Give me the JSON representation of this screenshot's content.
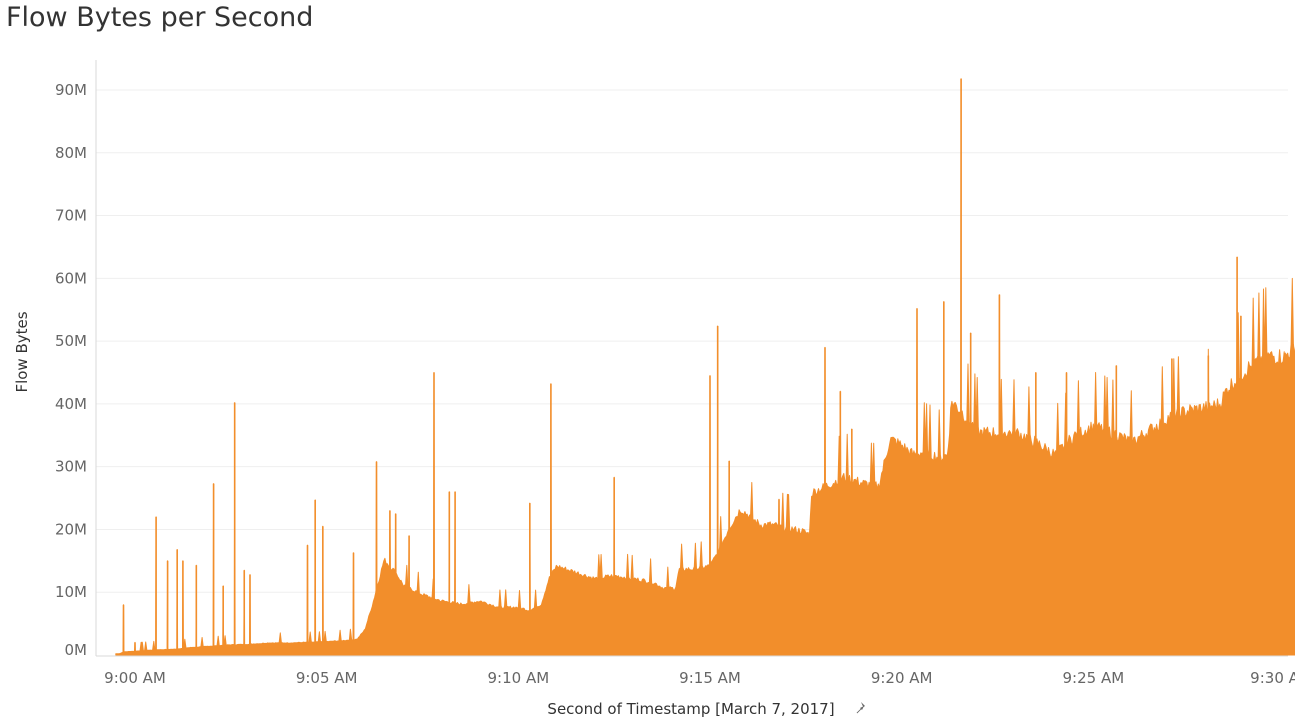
{
  "colors": {
    "area": "#F28E2B",
    "grid": "#EFEFEF",
    "axis": "#D9D9D9"
  },
  "chart_data": {
    "type": "area",
    "title": "Flow Bytes per Second",
    "xlabel": "Second of Timestamp [March 7, 2017]",
    "ylabel": "Flow Bytes",
    "ylim": [
      0,
      95
    ],
    "xlim": [
      -0.5,
      31.2
    ],
    "y_unit": "M",
    "yticks": [
      0,
      10,
      20,
      30,
      40,
      50,
      60,
      70,
      80,
      90
    ],
    "ytick_labels": [
      "0M",
      "10M",
      "20M",
      "30M",
      "40M",
      "50M",
      "60M",
      "70M",
      "80M",
      "90M"
    ],
    "x_ticks": [
      {
        "t": 0,
        "label": "9:00 AM"
      },
      {
        "t": 5,
        "label": "9:05 AM"
      },
      {
        "t": 10,
        "label": "9:10 AM"
      },
      {
        "t": 15,
        "label": "9:15 AM"
      },
      {
        "t": 20,
        "label": "9:20 AM"
      },
      {
        "t": 25,
        "label": "9:25 AM"
      },
      {
        "t": 30,
        "label": "9:30 AM"
      }
    ],
    "x_unit": "minutes after 9:00 AM",
    "grid": true,
    "series": [
      {
        "baseline": [
          [
            -0.5,
            0.2
          ],
          [
            -0.4,
            0.2
          ],
          [
            -0.3,
            0.5
          ],
          [
            0.0,
            0.6
          ],
          [
            0.5,
            0.8
          ],
          [
            1.0,
            0.9
          ],
          [
            1.5,
            1.2
          ],
          [
            2.0,
            1.4
          ],
          [
            2.5,
            1.6
          ],
          [
            3.0,
            1.7
          ],
          [
            3.5,
            1.9
          ],
          [
            4.0,
            1.9
          ],
          [
            4.5,
            2.0
          ],
          [
            5.0,
            2.1
          ],
          [
            5.5,
            2.3
          ],
          [
            5.8,
            2.5
          ],
          [
            6.0,
            4.0
          ],
          [
            6.2,
            8.0
          ],
          [
            6.5,
            15.0
          ],
          [
            6.8,
            13.0
          ],
          [
            7.0,
            11.0
          ],
          [
            7.5,
            9.5
          ],
          [
            8.0,
            8.5
          ],
          [
            8.5,
            8.0
          ],
          [
            9.0,
            8.5
          ],
          [
            9.5,
            7.5
          ],
          [
            10.0,
            7.5
          ],
          [
            10.3,
            7.0
          ],
          [
            10.6,
            8.0
          ],
          [
            10.8,
            12.0
          ],
          [
            11.0,
            14.0
          ],
          [
            11.5,
            13.0
          ],
          [
            12.0,
            12.0
          ],
          [
            12.5,
            12.5
          ],
          [
            13.0,
            12.0
          ],
          [
            13.5,
            11.5
          ],
          [
            13.8,
            10.5
          ],
          [
            14.1,
            10.5
          ],
          [
            14.2,
            13.5
          ],
          [
            14.5,
            13.5
          ],
          [
            15.0,
            14.0
          ],
          [
            15.2,
            16.0
          ],
          [
            15.5,
            20.0
          ],
          [
            15.8,
            23.0
          ],
          [
            16.0,
            22.0
          ],
          [
            16.3,
            20.5
          ],
          [
            16.6,
            20.5
          ],
          [
            17.0,
            20.0
          ],
          [
            17.4,
            19.5
          ],
          [
            17.6,
            19.0
          ],
          [
            17.65,
            25.5
          ],
          [
            18.0,
            26.5
          ],
          [
            18.5,
            28.0
          ],
          [
            19.0,
            27.0
          ],
          [
            19.4,
            26.5
          ],
          [
            19.7,
            34.0
          ],
          [
            20.0,
            33.0
          ],
          [
            20.3,
            31.5
          ],
          [
            20.6,
            32.0
          ],
          [
            21.0,
            31.0
          ],
          [
            21.2,
            31.5
          ],
          [
            21.3,
            40.0
          ],
          [
            21.6,
            38.0
          ],
          [
            22.0,
            35.0
          ],
          [
            22.5,
            35.0
          ],
          [
            23.0,
            35.0
          ],
          [
            23.5,
            33.5
          ],
          [
            24.0,
            31.5
          ],
          [
            24.5,
            34.5
          ],
          [
            25.0,
            36.0
          ],
          [
            25.5,
            35.0
          ],
          [
            26.0,
            33.5
          ],
          [
            26.5,
            35.5
          ],
          [
            27.0,
            37.5
          ],
          [
            27.5,
            38.5
          ],
          [
            28.0,
            39.0
          ],
          [
            28.3,
            39.5
          ],
          [
            28.5,
            42.0
          ],
          [
            29.0,
            45.0
          ],
          [
            29.5,
            47.0
          ],
          [
            30.0,
            47.0
          ],
          [
            30.3,
            49.0
          ],
          [
            30.6,
            53.0
          ],
          [
            31.0,
            49.0
          ],
          [
            31.2,
            49.0
          ]
        ],
        "spikes": [
          [
            -0.3,
            8.0
          ],
          [
            0.0,
            2.0
          ],
          [
            0.55,
            22.0
          ],
          [
            0.85,
            15.0
          ],
          [
            1.1,
            16.8
          ],
          [
            1.25,
            15.0
          ],
          [
            1.6,
            14.3
          ],
          [
            2.05,
            27.3
          ],
          [
            2.3,
            11.0
          ],
          [
            2.6,
            40.2
          ],
          [
            2.85,
            13.5
          ],
          [
            3.0,
            12.8
          ],
          [
            4.5,
            17.5
          ],
          [
            4.7,
            24.7
          ],
          [
            4.9,
            20.5
          ],
          [
            5.7,
            16.3
          ],
          [
            6.3,
            30.8
          ],
          [
            6.65,
            23.0
          ],
          [
            6.8,
            22.5
          ],
          [
            7.15,
            19.0
          ],
          [
            7.8,
            45.0
          ],
          [
            8.2,
            26.0
          ],
          [
            8.35,
            26.0
          ],
          [
            10.3,
            24.2
          ],
          [
            10.85,
            43.2
          ],
          [
            12.5,
            28.3
          ],
          [
            15.0,
            44.5
          ],
          [
            15.2,
            52.4
          ],
          [
            15.5,
            30.9
          ],
          [
            16.8,
            24.8
          ],
          [
            18.0,
            49.0
          ],
          [
            18.4,
            42.0
          ],
          [
            18.7,
            36.0
          ],
          [
            20.4,
            55.2
          ],
          [
            21.1,
            56.3
          ],
          [
            21.55,
            91.8
          ],
          [
            21.8,
            51.3
          ],
          [
            22.55,
            57.4
          ],
          [
            23.5,
            45.0
          ],
          [
            24.3,
            45.0
          ],
          [
            25.6,
            46.1
          ],
          [
            27.05,
            47.2
          ],
          [
            28.0,
            47.7
          ],
          [
            28.75,
            63.4
          ],
          [
            28.85,
            54.0
          ],
          [
            30.0,
            48.0
          ],
          [
            30.8,
            60.0
          ]
        ]
      }
    ]
  }
}
